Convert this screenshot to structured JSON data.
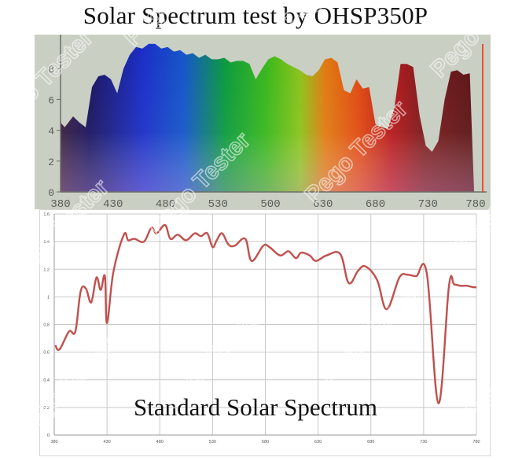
{
  "title": "Solar Spectrum test by OHSP350P",
  "subtitle": "Standard Solar Spectrum",
  "watermark": "Pego Tester",
  "chart_data": [
    {
      "type": "area",
      "title": "Solar Spectrum test by OHSP350P",
      "description": "Photographed spectrometer display, rainbow-colored filled spectrum",
      "xlabel": "",
      "ylabel": "",
      "x_ticks": [
        "380",
        "430",
        "480",
        "530",
        "580",
        "630",
        "680",
        "730",
        "780"
      ],
      "x_ticks_as_printed": [
        "380",
        "430",
        "480",
        "530",
        "500",
        "630",
        "680",
        "730",
        "780"
      ],
      "y_ticks": [
        "0",
        "2",
        "4",
        "6",
        "8"
      ],
      "xlim": [
        380,
        780
      ],
      "grid": false,
      "x": [
        380,
        384,
        392,
        398,
        404,
        410,
        416,
        422,
        428,
        434,
        440,
        446,
        452,
        458,
        464,
        470,
        476,
        482,
        488,
        494,
        500,
        506,
        512,
        518,
        524,
        530,
        536,
        542,
        548,
        554,
        560,
        566,
        572,
        578,
        584,
        590,
        596,
        602,
        608,
        614,
        620,
        626,
        632,
        638,
        644,
        650,
        656,
        662,
        668,
        674,
        680,
        686,
        692,
        698,
        704,
        710,
        716,
        722,
        728,
        734,
        740,
        746,
        752,
        758,
        764,
        770,
        774
      ],
      "values": [
        4.5,
        4.2,
        4.9,
        4.5,
        4.2,
        6.8,
        7.5,
        7.6,
        7.3,
        6.4,
        8.0,
        8.9,
        9.4,
        9.3,
        9.6,
        9.6,
        9.3,
        9.4,
        9.1,
        9.2,
        8.9,
        9.0,
        8.7,
        8.9,
        8.6,
        8.6,
        8.7,
        8.4,
        8.5,
        8.5,
        8.3,
        7.3,
        8.0,
        8.6,
        8.8,
        8.6,
        8.3,
        8.1,
        7.9,
        7.6,
        7.5,
        7.9,
        8.6,
        8.7,
        8.4,
        6.6,
        6.4,
        7.3,
        6.7,
        6.8,
        4.4,
        4.2,
        4.1,
        5.4,
        8.3,
        8.3,
        8.1,
        5.0,
        3.0,
        2.6,
        3.3,
        6.0,
        7.8,
        7.9,
        7.6,
        7.7,
        0.0
      ],
      "color_scale": "visible spectrum (violet → blue → green → yellow → orange → red)"
    },
    {
      "type": "line",
      "title": "Standard Solar Spectrum",
      "xlabel": "",
      "ylabel": "",
      "x_ticks": [
        "380",
        "430",
        "480",
        "530",
        "580",
        "630",
        "680",
        "730",
        "780"
      ],
      "y_ticks": [
        "0",
        "0.2",
        "0.4",
        "0.6",
        "0.8",
        "1",
        "1.2",
        "1.4",
        "1.6"
      ],
      "xlim": [
        380,
        780
      ],
      "ylim": [
        0,
        1.6
      ],
      "grid": true,
      "series": [
        {
          "name": "Standard Solar Spectrum",
          "color": "#c0504d",
          "x": [
            381,
            385,
            394,
            400,
            405,
            410,
            415,
            420,
            424,
            428,
            430,
            436,
            446,
            450,
            456,
            465,
            472,
            477,
            485,
            490,
            497,
            505,
            513,
            519,
            525,
            530,
            534,
            539,
            545,
            551,
            561,
            567,
            578,
            584,
            594,
            602,
            609,
            614,
            622,
            628,
            638,
            651,
            659,
            668,
            675,
            686,
            695,
            707,
            715,
            723,
            733,
            744,
            754,
            759,
            765,
            771,
            777,
            780
          ],
          "values": [
            0.65,
            0.62,
            0.75,
            0.75,
            1.04,
            1.06,
            0.96,
            1.14,
            1.05,
            1.15,
            0.81,
            1.18,
            1.45,
            1.41,
            1.42,
            1.4,
            1.5,
            1.46,
            1.52,
            1.42,
            1.45,
            1.41,
            1.46,
            1.44,
            1.46,
            1.36,
            1.41,
            1.46,
            1.38,
            1.37,
            1.42,
            1.26,
            1.37,
            1.36,
            1.3,
            1.33,
            1.28,
            1.32,
            1.3,
            1.26,
            1.3,
            1.31,
            1.1,
            1.19,
            1.22,
            1.12,
            0.91,
            1.14,
            1.16,
            1.15,
            1.17,
            0.23,
            1.08,
            1.09,
            1.08,
            1.08,
            1.07,
            1.07
          ]
        }
      ]
    }
  ]
}
